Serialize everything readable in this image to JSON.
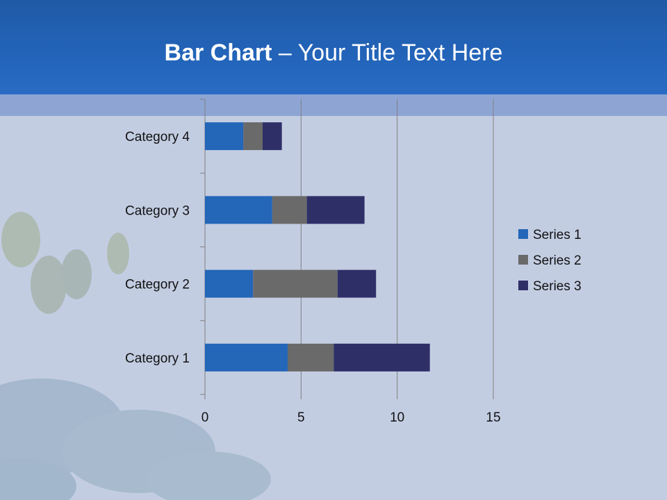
{
  "slide": {
    "title_bold": "Bar Chart",
    "title_dash": " – ",
    "title_rest": "Your Title Text Here"
  },
  "colors": {
    "header": "#2466bd",
    "band": "#8ea5d4",
    "background": "#c3cde2",
    "series": [
      "#2466b8",
      "#6a6a6a",
      "#2f2f68"
    ]
  },
  "chart_data": {
    "type": "bar",
    "orientation": "horizontal",
    "stacked": true,
    "title": "",
    "xlabel": "",
    "ylabel": "",
    "categories": [
      "Category 1",
      "Category 2",
      "Category 3",
      "Category 4"
    ],
    "series": [
      {
        "name": "Series 1",
        "values": [
          4.3,
          2.5,
          3.5,
          2.0
        ]
      },
      {
        "name": "Series 2",
        "values": [
          2.4,
          4.4,
          1.8,
          1.0
        ]
      },
      {
        "name": "Series 3",
        "values": [
          5.0,
          2.0,
          3.0,
          1.0
        ]
      }
    ],
    "xlim": [
      0,
      15
    ],
    "xticks": [
      0,
      5,
      10,
      15
    ],
    "grid": true,
    "legend_position": "right"
  }
}
